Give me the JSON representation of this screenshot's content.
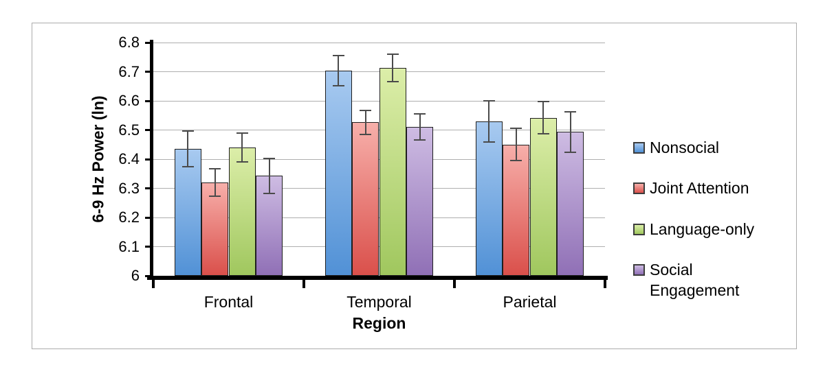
{
  "figure": {
    "background": "#ffffff",
    "frame_border_color": "#ababab",
    "axis_color": "#000000"
  },
  "chart_data": {
    "type": "bar",
    "title": "",
    "xlabel": "Region",
    "ylabel": "6-9 Hz Power (ln)",
    "categories": [
      "Frontal",
      "Temporal",
      "Parietal"
    ],
    "series": [
      {
        "name": "Nonsocial",
        "color_top": "#A8CAF0",
        "color_bottom": "#5191D6",
        "values": [
          6.435,
          6.703,
          6.53
        ],
        "errors": [
          0.062,
          0.052,
          0.07
        ]
      },
      {
        "name": "Joint Attention",
        "color_top": "#F7AFAA",
        "color_bottom": "#DA504B",
        "values": [
          6.32,
          6.526,
          6.45
        ],
        "errors": [
          0.048,
          0.042,
          0.055
        ]
      },
      {
        "name": "Language-only",
        "color_top": "#DCEEA9",
        "color_bottom": "#A0C75E",
        "values": [
          6.44,
          6.713,
          6.542
        ],
        "errors": [
          0.05,
          0.048,
          0.055
        ]
      },
      {
        "name": "Social Engagement",
        "color_top": "#CEBCE3",
        "color_bottom": "#9070B6",
        "values": [
          6.343,
          6.511,
          6.493
        ],
        "errors": [
          0.06,
          0.045,
          0.07
        ]
      }
    ],
    "ylim": [
      6.0,
      6.8
    ],
    "yticks": [
      6.0,
      6.1,
      6.2,
      6.3,
      6.4,
      6.5,
      6.6,
      6.7,
      6.8
    ],
    "ytick_labels": [
      "6",
      "6.1",
      "6.2",
      "6.3",
      "6.4",
      "6.5",
      "6.6",
      "6.7",
      "6.8"
    ],
    "grid": true,
    "legend_position": "right",
    "gridline_color": "#aeaeae",
    "error_bar_color": "#4a4a4a"
  }
}
